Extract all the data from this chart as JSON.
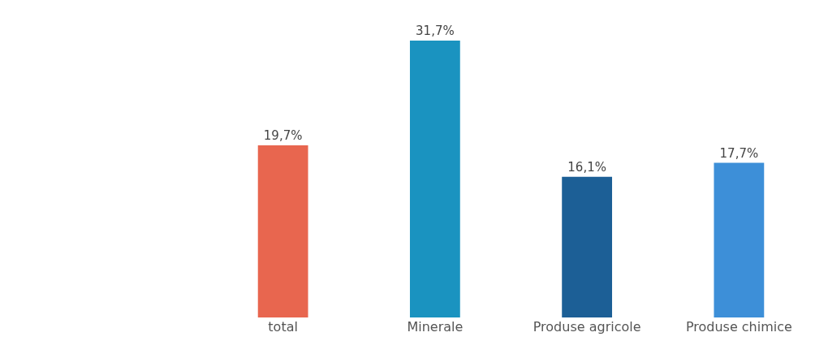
{
  "chart_data": {
    "type": "bar",
    "categories": [
      "total",
      "Minerale",
      "Produse agricole",
      "Produse chimice"
    ],
    "values": [
      19.7,
      31.7,
      16.1,
      17.7
    ],
    "colors": [
      "#e8664f",
      "#1a93c0",
      "#1c5f96",
      "#3d8fd8"
    ],
    "value_labels": [
      "19,7%",
      "31,7%",
      "16,1%",
      "17,7%"
    ]
  }
}
